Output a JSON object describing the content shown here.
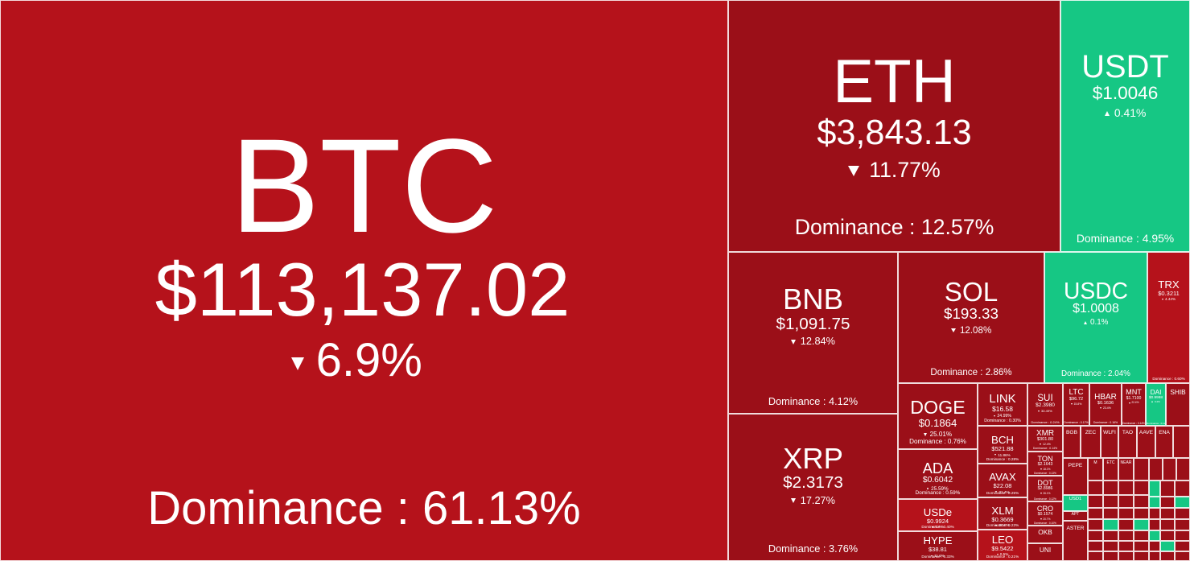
{
  "colors": {
    "down": "#b5121b",
    "down_dark": "#9b0f18",
    "up": "#16c784",
    "border": "#ffffff"
  },
  "labels": {
    "dominance_prefix": "Dominance : "
  },
  "chart_data": {
    "type": "treemap",
    "metric": "Dominance",
    "tiles": [
      {
        "symbol": "BTC",
        "price": "$113,137.02",
        "change": "6.9%",
        "direction": "down",
        "dominance": "61.13%"
      },
      {
        "symbol": "ETH",
        "price": "$3,843.13",
        "change": "11.77%",
        "direction": "down",
        "dominance": "12.57%"
      },
      {
        "symbol": "USDT",
        "price": "$1.0046",
        "change": "0.41%",
        "direction": "up",
        "dominance": "4.95%"
      },
      {
        "symbol": "BNB",
        "price": "$1,091.75",
        "change": "12.84%",
        "direction": "down",
        "dominance": "4.12%"
      },
      {
        "symbol": "SOL",
        "price": "$193.33",
        "change": "12.08%",
        "direction": "down",
        "dominance": "2.86%"
      },
      {
        "symbol": "USDC",
        "price": "$1.0008",
        "change": "0.1%",
        "direction": "up",
        "dominance": "2.04%"
      },
      {
        "symbol": "TRX",
        "price": "$0.3211",
        "change": "4.44%",
        "direction": "down",
        "dominance": "0.60%"
      },
      {
        "symbol": "XRP",
        "price": "$2.3173",
        "change": "17.27%",
        "direction": "down",
        "dominance": "3.76%"
      },
      {
        "symbol": "DOGE",
        "price": "$0.1864",
        "change": "25.01%",
        "direction": "down",
        "dominance": "0.76%"
      },
      {
        "symbol": "ADA",
        "price": "$0.6042",
        "change": "25.59%",
        "direction": "down",
        "dominance": "0.59%"
      },
      {
        "symbol": "USDe",
        "price": "$0.9924",
        "change": "0.6%",
        "direction": "down",
        "dominance": "0.40%"
      },
      {
        "symbol": "HYPE",
        "price": "$38.81",
        "change": "11.6%",
        "direction": "down",
        "dominance": "0.33%"
      },
      {
        "symbol": "LINK",
        "price": "$16.58",
        "change": "24.99%",
        "direction": "down",
        "dominance": "0.30%"
      },
      {
        "symbol": "BCH",
        "price": "$521.88",
        "change": "11.86%",
        "direction": "down",
        "dominance": "0.28%"
      },
      {
        "symbol": "AVAX",
        "price": "$22.08",
        "change": "21.4%",
        "direction": "down",
        "dominance": "0.25%"
      },
      {
        "symbol": "XLM",
        "price": "$0.3669",
        "change": "20.8%",
        "direction": "down",
        "dominance": "0.23%"
      },
      {
        "symbol": "LEO",
        "price": "$9.5422",
        "change": "0.5%",
        "direction": "down",
        "dominance": "0.21%"
      },
      {
        "symbol": "SUI",
        "price": "$2.3980",
        "change": "30.49%",
        "direction": "down",
        "dominance": "0.24%"
      },
      {
        "symbol": "LTC",
        "price": "$96.72",
        "change": "15.8%",
        "direction": "down",
        "dominance": "0.17%"
      },
      {
        "symbol": "HBAR",
        "price": "$0.1636",
        "change": "23.4%",
        "direction": "down",
        "dominance": "0.16%"
      },
      {
        "symbol": "MNT",
        "price": "$1.7100",
        "change": "22.4%",
        "direction": "down",
        "dominance": "0.14%"
      },
      {
        "symbol": "DAI",
        "price": "$0.9998",
        "change": "0.2%",
        "direction": "up",
        "dominance": "0.12%"
      },
      {
        "symbol": "SHIB",
        "price": "",
        "change": "",
        "direction": "down",
        "dominance": ""
      },
      {
        "symbol": "XMR",
        "price": "$301.80",
        "change": "12.4%",
        "direction": "down",
        "dominance": "0.14%"
      },
      {
        "symbol": "TON",
        "price": "$2.1643",
        "change": "18.2%",
        "direction": "down",
        "dominance": "0.13%"
      },
      {
        "symbol": "DOT",
        "price": "$2.8986",
        "change": "26.1%",
        "direction": "down",
        "dominance": "0.12%"
      },
      {
        "symbol": "CRO",
        "price": "$0.1574",
        "change": "20.7%",
        "direction": "down",
        "dominance": "0.10%"
      },
      {
        "symbol": "OKB",
        "price": "",
        "change": "",
        "direction": "down",
        "dominance": ""
      },
      {
        "symbol": "UNI",
        "price": "",
        "change": "",
        "direction": "down",
        "dominance": ""
      },
      {
        "symbol": "BGB",
        "price": "",
        "change": "",
        "direction": "down",
        "dominance": ""
      },
      {
        "symbol": "ZEC",
        "price": "",
        "change": "",
        "direction": "down",
        "dominance": ""
      },
      {
        "symbol": "WLFI",
        "price": "",
        "change": "",
        "direction": "down",
        "dominance": ""
      },
      {
        "symbol": "TAO",
        "price": "",
        "change": "",
        "direction": "down",
        "dominance": ""
      },
      {
        "symbol": "AAVE",
        "price": "",
        "change": "",
        "direction": "down",
        "dominance": ""
      },
      {
        "symbol": "ENA",
        "price": "",
        "change": "",
        "direction": "down",
        "dominance": ""
      },
      {
        "symbol": "PEPE",
        "price": "",
        "change": "",
        "direction": "down",
        "dominance": ""
      },
      {
        "symbol": "APT",
        "price": "",
        "change": "",
        "direction": "down",
        "dominance": ""
      },
      {
        "symbol": "NEAR",
        "price": "",
        "change": "",
        "direction": "down",
        "dominance": ""
      },
      {
        "symbol": "ASTER",
        "price": "",
        "change": "",
        "direction": "down",
        "dominance": ""
      },
      {
        "symbol": "USD1",
        "price": "",
        "change": "",
        "direction": "up",
        "dominance": ""
      },
      {
        "symbol": "PYUSD",
        "price": "",
        "change": "",
        "direction": "up",
        "dominance": ""
      },
      {
        "symbol": "M",
        "price": "",
        "change": "",
        "direction": "down",
        "dominance": ""
      },
      {
        "symbol": "ETC",
        "price": "",
        "change": "",
        "direction": "down",
        "dominance": ""
      }
    ]
  }
}
